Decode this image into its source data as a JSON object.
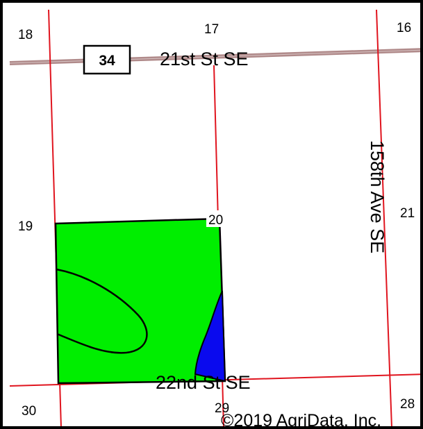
{
  "colors": {
    "section_line": "#e0141e",
    "road": "#b08a8a",
    "field_fill": "#00ee00",
    "water_fill": "#0a0aee",
    "outline": "#000000",
    "frame": "#000000",
    "background": "#ffffff"
  },
  "route_shield": {
    "number": "34"
  },
  "roads": {
    "north": "21st St SE",
    "south": "22nd St SE",
    "east": "158th Ave SE"
  },
  "sections": [
    "18",
    "17",
    "16",
    "19",
    "20",
    "21",
    "30",
    "29",
    "28"
  ],
  "copyright": "©2019 AgriData, Inc."
}
